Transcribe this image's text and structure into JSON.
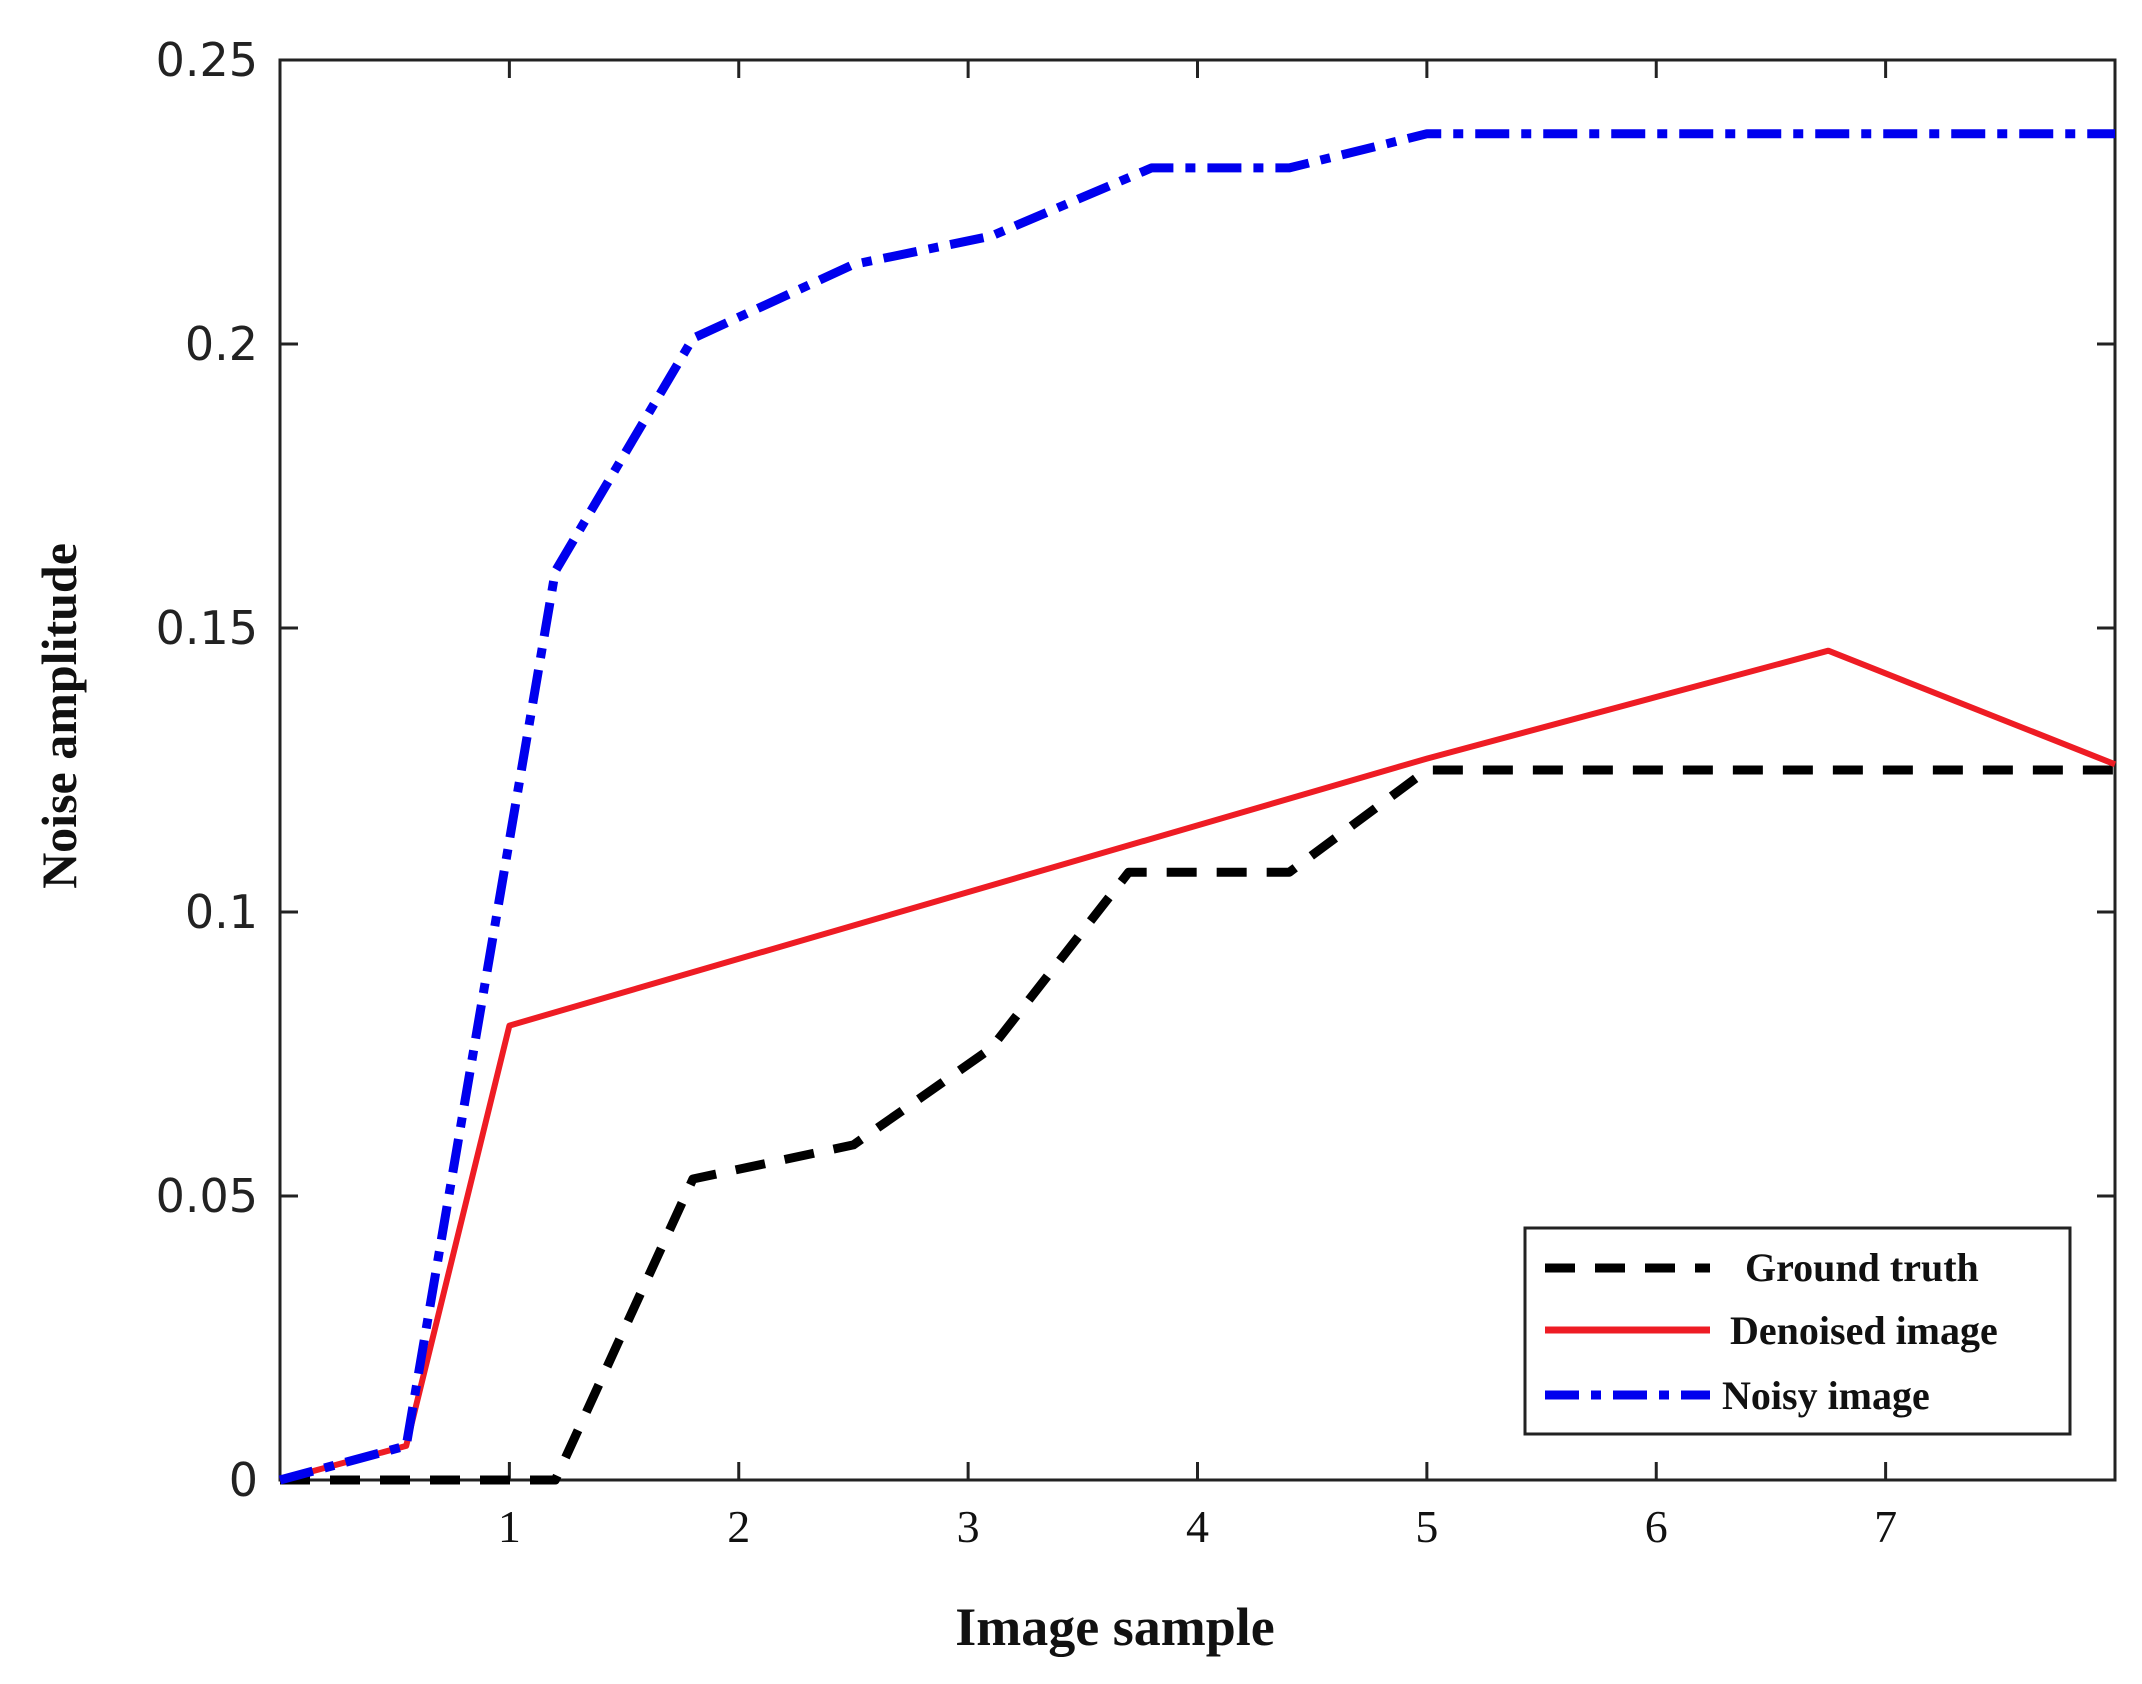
{
  "chart_data": {
    "type": "line",
    "title": "",
    "xlabel": "Image sample",
    "ylabel": "Noise amplitude",
    "xlim": [
      0,
      8
    ],
    "ylim": [
      0,
      0.25
    ],
    "x_ticks": [
      1,
      2,
      3,
      4,
      5,
      6,
      7
    ],
    "x_tick_labels": [
      "1",
      "2",
      "3",
      "4",
      "5",
      "6",
      "7"
    ],
    "y_ticks": [
      0,
      0.05,
      0.1,
      0.15,
      0.2,
      0.25
    ],
    "y_tick_labels": [
      "0",
      "0.05",
      "0.1",
      "0.15",
      "0.2",
      "0.25"
    ],
    "grid": false,
    "legend_position": "bottom-right",
    "series": [
      {
        "name": "Ground truth",
        "color": "#000000",
        "style": "dashed",
        "x": [
          0,
          1.0,
          1.2,
          1.8,
          2.5,
          3.1,
          3.7,
          4.4,
          5.0,
          8.0
        ],
        "y": [
          0,
          0,
          0,
          0.053,
          0.059,
          0.076,
          0.107,
          0.107,
          0.125,
          0.125
        ]
      },
      {
        "name": "Denoised image",
        "color": "#ee1c24",
        "style": "solid",
        "x": [
          0,
          0.55,
          1.0,
          5.0,
          6.75,
          8.0
        ],
        "y": [
          0,
          0.006,
          0.08,
          0.127,
          0.146,
          0.126
        ]
      },
      {
        "name": "Noisy image",
        "color": "#0000ee",
        "style": "dashdot",
        "x": [
          0,
          0.55,
          1.2,
          1.8,
          2.5,
          3.1,
          3.8,
          4.4,
          5.0,
          6.0,
          7.0,
          8.0
        ],
        "y": [
          0,
          0.006,
          0.16,
          0.201,
          0.214,
          0.219,
          0.231,
          0.231,
          0.237,
          0.237,
          0.237,
          0.237
        ]
      }
    ]
  }
}
